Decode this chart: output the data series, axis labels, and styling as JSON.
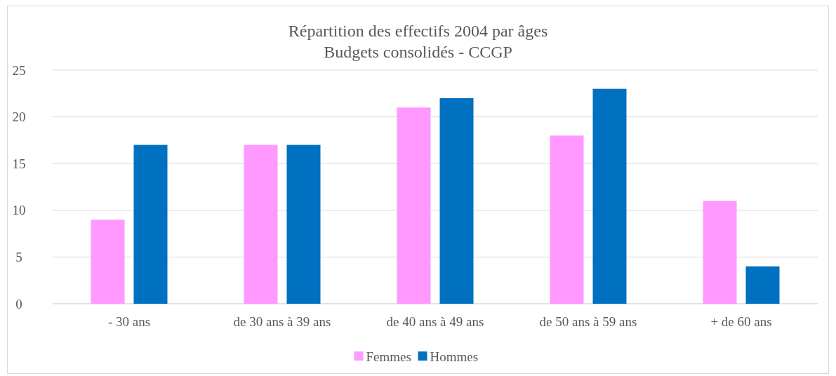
{
  "chart_data": {
    "type": "bar",
    "title": "Répartition des effectifs 2004  par âges",
    "subtitle": "Budgets consolidés - CCGP",
    "categories": [
      "- 30 ans",
      "de 30 ans à 39 ans",
      "de 40 ans à 49 ans",
      "de 50 ans à 59 ans",
      "+ de 60 ans"
    ],
    "series": [
      {
        "name": "Femmes",
        "color": "#ff99ff",
        "values": [
          9,
          17,
          21,
          18,
          11
        ]
      },
      {
        "name": "Hommes",
        "color": "#0070c0",
        "values": [
          17,
          17,
          22,
          23,
          4
        ]
      }
    ],
    "ylim": [
      0,
      25
    ],
    "yticks": [
      0,
      5,
      10,
      15,
      20,
      25
    ],
    "grid": "y",
    "legend": "bottom"
  }
}
